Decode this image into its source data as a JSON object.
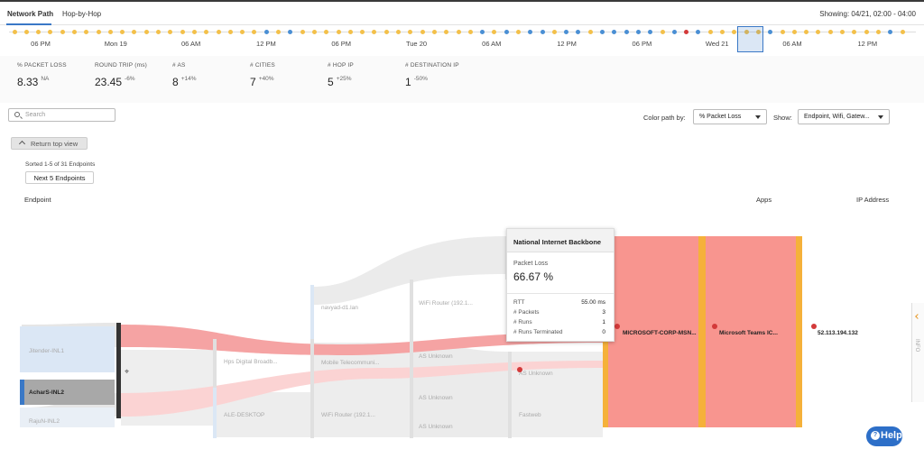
{
  "tabs": [
    {
      "label": "Network Path"
    },
    {
      "label": "Hop-by-Hop"
    }
  ],
  "showing": "Showing: 04/21, 02:00 - 04:00",
  "timeline": {
    "tick_labels": [
      "06 PM",
      "Mon 19",
      "06 AM",
      "12 PM",
      "06 PM",
      "Tue 20",
      "06 AM",
      "12 PM",
      "06 PM",
      "Wed 21",
      "06 AM",
      "12 PM"
    ],
    "dot_colors": [
      "y",
      "y",
      "y",
      "y",
      "y",
      "y",
      "y",
      "y",
      "y",
      "y",
      "y",
      "y",
      "y",
      "y",
      "y",
      "y",
      "y",
      "y",
      "y",
      "y",
      "y",
      "b",
      "y",
      "b",
      "y",
      "y",
      "y",
      "y",
      "y",
      "y",
      "y",
      "y",
      "y",
      "y",
      "y",
      "y",
      "y",
      "y",
      "y",
      "b",
      "y",
      "b",
      "y",
      "b",
      "b",
      "y",
      "b",
      "b",
      "y",
      "b",
      "b",
      "b",
      "b",
      "b",
      "y",
      "b",
      "r",
      "b",
      "y",
      "y",
      "y",
      "y",
      "y",
      "b",
      "y",
      "y",
      "y",
      "y",
      "y",
      "y",
      "y",
      "y",
      "y",
      "b",
      "y"
    ],
    "colors": {
      "y": "#f3c04a",
      "b": "#4a8fd4",
      "r": "#d33a3a"
    }
  },
  "stats": [
    {
      "label": "% PACKET LOSS",
      "value": "8.33",
      "delta": "NA"
    },
    {
      "label": "ROUND TRIP (ms)",
      "value": "23.45",
      "delta": "-6%"
    },
    {
      "label": "# AS",
      "value": "8",
      "delta": "+14%"
    },
    {
      "label": "# CITIES",
      "value": "7",
      "delta": "+40%"
    },
    {
      "label": "# HOP IP",
      "value": "5",
      "delta": "+25%"
    },
    {
      "label": "# DESTINATION IP",
      "value": "1",
      "delta": "-50%"
    }
  ],
  "search": {
    "placeholder": "Search"
  },
  "color_path": {
    "label": "Color path by:",
    "value": "% Packet Loss"
  },
  "show": {
    "label": "Show:",
    "value": "Endpoint, Wifi, Gatew..."
  },
  "return_top_view": "Return top view",
  "sorted_text": "Sorted 1-5 of 31 Endpoints",
  "next_endpoints": "Next 5 Endpoints",
  "columns": {
    "endpoint": "Endpoint",
    "apps": "Apps",
    "ip_address": "IP Address"
  },
  "nodes": {
    "endpoints": [
      "Jitender-INL1",
      "AcharS-INL2",
      "RajuN-INL2"
    ],
    "hop1": [
      "Hps Digital Broadb...",
      "ALE-DESKTOP"
    ],
    "hop2": [
      "navyad-d1.lan",
      "Mobile Telecommuni...",
      "WiFi Router (192.1..."
    ],
    "hop3": [
      "WiFi Router (192.1...",
      "AS Unknown",
      "AS Unknown",
      "AS Unknown"
    ],
    "hop4": [
      "AS Unknown",
      "Fastweb"
    ],
    "as_node": "MICROSOFT-CORP-MSN...",
    "app": "Microsoft Teams IC...",
    "ip": "52.113.194.132"
  },
  "tooltip": {
    "title": "National Internet Backbone",
    "metric_label": "Packet Loss",
    "metric_value": "66.67 %",
    "rows": [
      {
        "label": "RTT",
        "value": "55.00 ms"
      },
      {
        "label": "# Packets",
        "value": "3"
      },
      {
        "label": "# Runs",
        "value": "1"
      },
      {
        "label": "# Runs Terminated",
        "value": "0"
      }
    ]
  },
  "info_tab": "INFO",
  "help": "Help"
}
